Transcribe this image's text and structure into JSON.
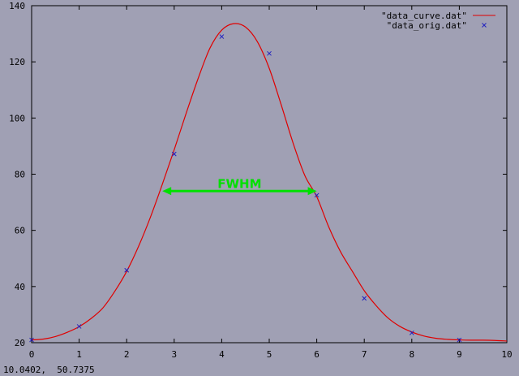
{
  "status_readout": "10.0402,  50.7375",
  "colors": {
    "background": "#a0a0b4",
    "axis": "#000000",
    "curve": "#e00000",
    "points": "#2020c0",
    "annotation": "#00e000"
  },
  "chart_data": {
    "type": "line",
    "xlim": [
      0,
      10
    ],
    "ylim": [
      20,
      140
    ],
    "x_ticks": [
      0,
      1,
      2,
      3,
      4,
      5,
      6,
      7,
      8,
      9,
      10
    ],
    "y_ticks": [
      20,
      40,
      60,
      80,
      100,
      120,
      140
    ],
    "grid": false,
    "legend_position": "top-right",
    "series": [
      {
        "name": "\"data_curve.dat\"",
        "style": "line",
        "x": [
          0,
          0.25,
          0.5,
          0.75,
          1,
          1.25,
          1.5,
          1.75,
          2,
          2.25,
          2.5,
          2.75,
          3,
          3.25,
          3.5,
          3.75,
          4,
          4.25,
          4.5,
          4.75,
          5,
          5.25,
          5.5,
          5.75,
          6,
          6.25,
          6.5,
          6.75,
          7,
          7.25,
          7.5,
          7.75,
          8,
          8.25,
          8.5,
          8.75,
          9,
          9.25,
          9.5,
          9.75,
          10
        ],
        "y": [
          21,
          21.3,
          22.2,
          23.7,
          25.7,
          28.6,
          32.4,
          38.3,
          45.4,
          54.3,
          64.7,
          76.4,
          88.7,
          101.6,
          113.9,
          124.8,
          131.3,
          133.6,
          132.4,
          127.2,
          117.7,
          104.8,
          91.2,
          79.5,
          72.0,
          61.3,
          52.4,
          45.4,
          38.5,
          33.2,
          28.8,
          25.8,
          23.8,
          22.4,
          21.6,
          21.2,
          21.0,
          20.9,
          20.9,
          20.8,
          20.6
        ]
      },
      {
        "name": "\"data_orig.dat\"",
        "style": "points",
        "x": [
          0,
          1,
          2,
          3,
          4,
          5,
          6,
          7,
          8,
          9
        ],
        "y": [
          21,
          25.8,
          45.8,
          87.2,
          129,
          123,
          72.5,
          35.8,
          23.5,
          21
        ]
      }
    ],
    "annotations": [
      {
        "text": "FWHM",
        "type": "double-arrow",
        "x_start": 2.75,
        "x_end": 6.0,
        "y": 74
      }
    ]
  }
}
